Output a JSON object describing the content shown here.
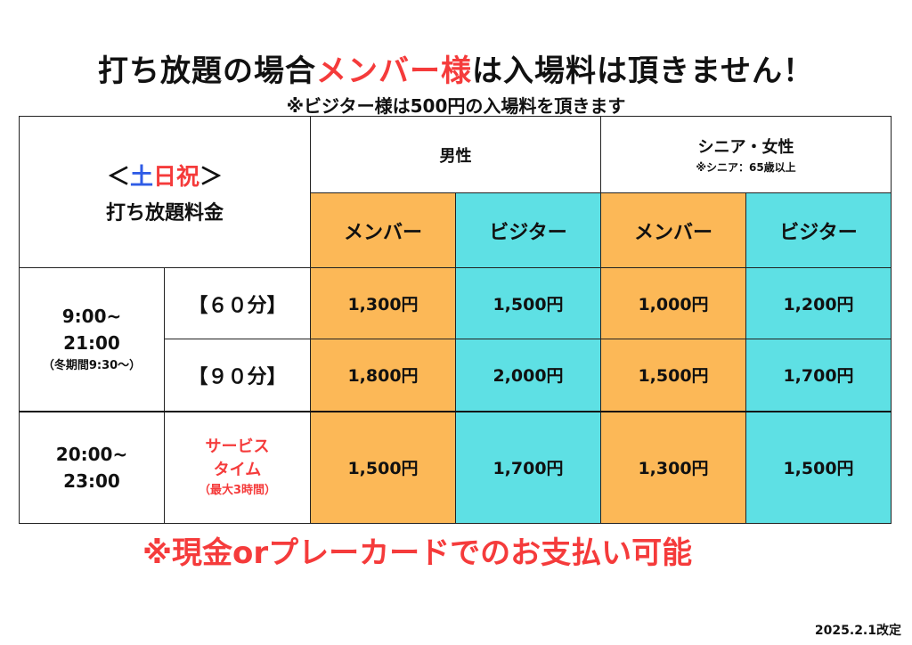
{
  "header": {
    "title_prefix": "打ち放題の場合",
    "title_highlight": "メンバー様",
    "title_suffix": "は入場料は頂きません！",
    "subtitle": "※ビジター様は500円の入場料を頂きます"
  },
  "table": {
    "corner": {
      "bracket_open": "＜",
      "day_sat": "土",
      "day_sun_hol": "日祝",
      "bracket_close": "＞",
      "label": "打ち放題料金"
    },
    "groups": [
      {
        "label": "男性",
        "note": ""
      },
      {
        "label": "シニア・女性",
        "note": "※シニア：65歳以上"
      }
    ],
    "columns": [
      "メンバー",
      "ビジター",
      "メンバー",
      "ビジター"
    ],
    "blocks": [
      {
        "time_line1": "9:00~",
        "time_line2": "21:00",
        "time_note": "（冬期間9:30～）",
        "rows": [
          {
            "label": "【６０分】",
            "prices": [
              "1,300円",
              "1,500円",
              "1,000円",
              "1,200円"
            ]
          },
          {
            "label": "【９０分】",
            "prices": [
              "1,800円",
              "2,000円",
              "1,500円",
              "1,700円"
            ]
          }
        ]
      },
      {
        "time_line1": "20:00~",
        "time_line2": "23:00",
        "service_line1": "サービス",
        "service_line2": "タイム",
        "service_note": "（最大3時間）",
        "prices": [
          "1,500円",
          "1,700円",
          "1,300円",
          "1,500円"
        ]
      }
    ]
  },
  "footer": {
    "payment": "※現金orプレーカードでのお支払い可能",
    "revised": "2025.2.1改定"
  },
  "colors": {
    "member": "#fcb857",
    "visitor": "#5ee0e4",
    "accent_red": "#f53b3b",
    "accent_blue": "#2f5ce6"
  }
}
